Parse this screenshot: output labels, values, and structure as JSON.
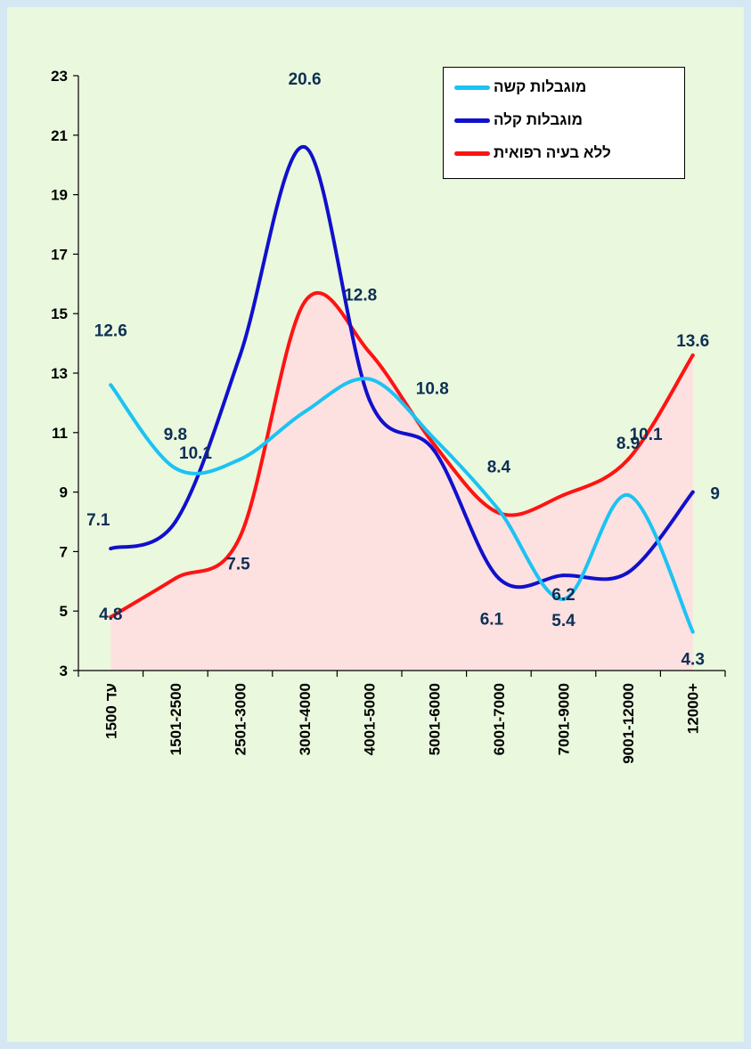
{
  "chart_data": {
    "type": "line",
    "title": "",
    "xlabel": "",
    "ylabel": "",
    "categories": [
      "עד 1500",
      "1501-2500",
      "2501-3000",
      "3001-4000",
      "4001-5000",
      "5001-6000",
      "6001-7000",
      "7001-9000",
      "9001-12000",
      "12000+"
    ],
    "ylim": [
      3,
      23
    ],
    "yticks": [
      "3",
      "5",
      "7",
      "9",
      "11",
      "13",
      "15",
      "17",
      "19",
      "21",
      "23"
    ],
    "grid": false,
    "legend_position": "top-right",
    "series": [
      {
        "name": "מוגבלות קשה",
        "color": "#1bc3f3",
        "values": [
          12.6,
          9.8,
          10.1,
          11.7,
          12.8,
          10.8,
          8.4,
          5.4,
          8.9,
          4.3
        ],
        "labels": [
          "12.6",
          "9.8",
          "10.1",
          "",
          "12.8",
          "10.8",
          "8.4",
          "5.4",
          "8.9",
          "4.3"
        ]
      },
      {
        "name": "מוגבלות קלה",
        "color": "#1010cc",
        "values": [
          7.1,
          8.0,
          13.6,
          20.6,
          12.1,
          10.4,
          6.1,
          6.2,
          6.3,
          9.0
        ],
        "labels": [
          "7.1",
          "",
          "",
          "20.6",
          "",
          "",
          "6.1",
          "6.2",
          "",
          "9"
        ]
      },
      {
        "name": "ללא בעיה רפואית",
        "color": "#ff1313",
        "values": [
          4.8,
          6.1,
          7.5,
          15.4,
          13.7,
          10.6,
          8.3,
          8.9,
          10.1,
          13.6
        ],
        "labels": [
          "4.8",
          "",
          "7.5",
          "",
          "",
          "",
          "",
          "",
          "10.1",
          "13.6"
        ]
      }
    ]
  }
}
